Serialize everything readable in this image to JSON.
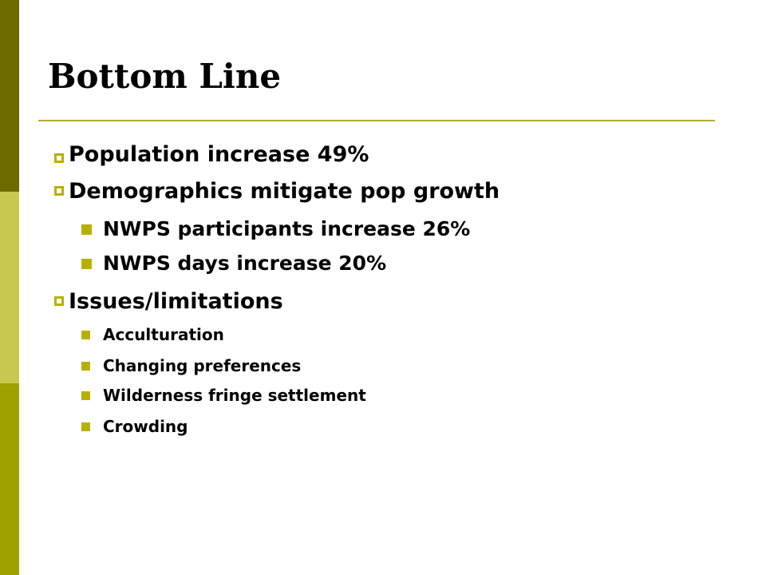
{
  "slide": {
    "title": "Bottom Line",
    "items": [
      {
        "level": 1,
        "text": "Population increase 49%"
      },
      {
        "level": 1,
        "text": "Demographics mitigate pop growth"
      },
      {
        "level": 2,
        "text": "NWPS participants increase 26%"
      },
      {
        "level": 2,
        "text": "NWPS days increase 20%"
      },
      {
        "level": 1,
        "text": "Issues/limitations"
      },
      {
        "level": 3,
        "text": "Acculturation"
      },
      {
        "level": 3,
        "text": "Changing preferences"
      },
      {
        "level": 3,
        "text": "Wilderness fringe settlement"
      },
      {
        "level": 3,
        "text": "Crowding"
      }
    ]
  },
  "colors": {
    "sidebar_dark": "#6b6b00",
    "sidebar_light": "#c8c850",
    "sidebar_mid": "#a0a000",
    "accent": "#b8b000",
    "rule": "#b8a830"
  }
}
